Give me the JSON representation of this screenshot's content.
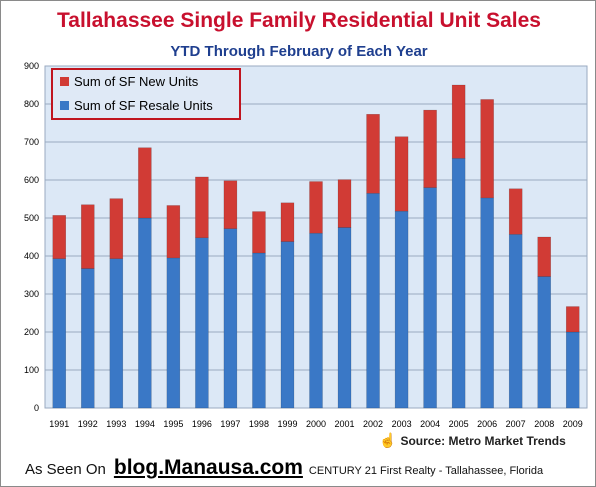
{
  "colors": {
    "title": "#c8102e",
    "subtitle": "#1f3f8f",
    "new_units": "#d13b35",
    "resale_units": "#3a78c6",
    "plot_bg": "#dce8f6"
  },
  "source_text": "Source: Metro Market Trends",
  "footer": {
    "seen_on": "As Seen On",
    "blog": "blog.Manausa.com",
    "agency": "CENTURY 21 First Realty - Tallahassee, Florida"
  },
  "chart_data": {
    "type": "bar",
    "stacked": true,
    "title": "Tallahassee Single Family Residential Unit Sales",
    "subtitle": "YTD Through February of Each Year",
    "categories": [
      "1991",
      "1992",
      "1993",
      "1994",
      "1995",
      "1996",
      "1997",
      "1998",
      "1999",
      "2000",
      "2001",
      "2002",
      "2003",
      "2004",
      "2005",
      "2006",
      "2007",
      "2008",
      "2009"
    ],
    "series": [
      {
        "name": "Sum of SF Resale Units",
        "color": "#3a78c6",
        "values": [
          393,
          367,
          393,
          500,
          395,
          448,
          472,
          408,
          438,
          460,
          475,
          565,
          518,
          580,
          657,
          553,
          457,
          346,
          200
        ]
      },
      {
        "name": "Sum of SF New Units",
        "color": "#d13b35",
        "values": [
          114,
          168,
          158,
          185,
          138,
          160,
          126,
          109,
          102,
          136,
          126,
          208,
          196,
          204,
          193,
          259,
          120,
          104,
          67
        ]
      }
    ],
    "ylim": [
      0,
      900
    ],
    "yticks": [
      "0",
      "100",
      "200",
      "300",
      "400",
      "500",
      "600",
      "700",
      "800",
      "900"
    ],
    "grid": true,
    "legend": "top-left"
  }
}
